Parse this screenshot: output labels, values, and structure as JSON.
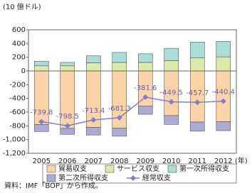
{
  "chart_data": {
    "type": "bar",
    "stacked": true,
    "y_unit_label": "(10 億ドル)",
    "x_unit_label": "(年)",
    "categories": [
      "2005",
      "2006",
      "2007",
      "2008",
      "2009",
      "2010",
      "2011",
      "2012"
    ],
    "series": [
      {
        "name": "貿易収支",
        "color": "#fcd3a6",
        "values": [
          -782,
          -837,
          -822,
          -834,
          -510,
          -650,
          -745,
          -740
        ]
      },
      {
        "name": "サービス収支",
        "color": "#dbe9a9",
        "values": [
          75,
          75,
          120,
          125,
          125,
          150,
          190,
          205
        ]
      },
      {
        "name": "第一次所得収支",
        "color": "#a9ddd7",
        "values": [
          68,
          50,
          100,
          145,
          125,
          180,
          230,
          225
        ]
      },
      {
        "name": "第二次所得収支",
        "color": "#abaad6",
        "values": [
          -100,
          -87,
          -112,
          -117,
          -122,
          -130,
          -133,
          -130
        ]
      },
      {
        "name": "経常収支",
        "type": "line",
        "color": "#7f7fcc",
        "values": [
          -739.8,
          -798.5,
          -713.4,
          -681.3,
          -381.6,
          -449.5,
          -457.7,
          -440.4
        ]
      }
    ],
    "ylim": [
      -1200,
      600
    ],
    "yticks": [
      600,
      400,
      200,
      0,
      -200,
      -400,
      -600,
      -800,
      {
        "value": -1000,
        "label": "-1,000"
      },
      {
        "value": -1200,
        "label": "-1,200"
      }
    ],
    "source": "資料：IMF「BOP」から作成。"
  }
}
